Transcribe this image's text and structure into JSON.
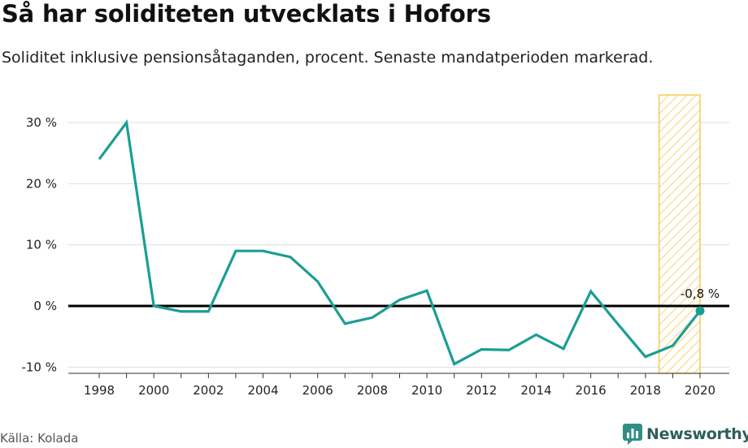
{
  "title": "Så har soliditeten utvecklats i Hofors",
  "subtitle": "Soliditet inklusive pensionsåtaganden, procent. Senaste mandatperioden markerad.",
  "source": "Källa: Kolada",
  "brand": "Newsworthy",
  "colors": {
    "line": "#1a9e94",
    "highlight": "#f5c542",
    "zero_line": "#000000",
    "grid": "#dddddd"
  },
  "chart_data": {
    "type": "line",
    "x": [
      1998,
      1999,
      2000,
      2001,
      2002,
      2003,
      2004,
      2005,
      2006,
      2007,
      2008,
      2009,
      2010,
      2011,
      2012,
      2013,
      2014,
      2015,
      2016,
      2017,
      2018,
      2019,
      2020
    ],
    "series": [
      {
        "values": [
          24,
          30,
          0,
          -0.9,
          -0.9,
          9,
          9,
          8,
          4,
          -2.9,
          -1.9,
          1,
          2.5,
          -9.5,
          -7.1,
          -7.2,
          -4.7,
          -7,
          2.4,
          -3,
          -8.3,
          -6.5,
          -0.8
        ]
      }
    ],
    "xticks": [
      "1998",
      "2000",
      "2002",
      "2004",
      "2006",
      "2008",
      "2010",
      "2012",
      "2014",
      "2016",
      "2018",
      "2020"
    ],
    "yticks": [
      {
        "value": 30,
        "label": "30 %"
      },
      {
        "value": 20,
        "label": "20 %"
      },
      {
        "value": 10,
        "label": "10 %"
      },
      {
        "value": 0,
        "label": "0 %"
      },
      {
        "value": -10,
        "label": "-10 %"
      }
    ],
    "ylim": [
      -11,
      34
    ],
    "xlim": [
      1997,
      2021
    ],
    "highlight_range": [
      2018.5,
      2020
    ],
    "last_point_label": "-0,8 %",
    "grid": true
  }
}
